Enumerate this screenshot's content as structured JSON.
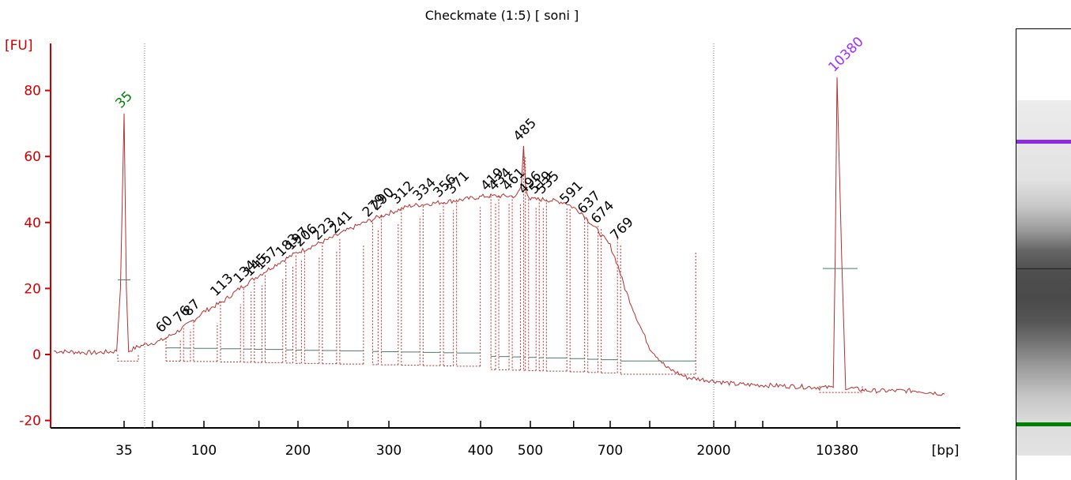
{
  "title": "Checkmate (1:5)  [ soni ]",
  "colors": {
    "axis": "#cc0000",
    "trace": "#b03030",
    "baseline": "#4a7a6a",
    "lower_marker": "#008000",
    "upper_marker": "#9b30ff",
    "peak_label": "#000000"
  },
  "chart_data": {
    "type": "line",
    "title": "Checkmate (1:5)  [ soni ]",
    "ylabel": "[FU]",
    "xlabel": "[bp]",
    "ylim": [
      -22,
      95
    ],
    "yticks": [
      -20,
      0,
      20,
      40,
      60,
      80
    ],
    "xtick_labels": [
      "35",
      "100",
      "200",
      "300",
      "400",
      "500",
      "700",
      "2000",
      "10380"
    ],
    "x_axis_scale": "ladder (non-linear bp)",
    "grid": false,
    "vertical_dotted_lines_bp": [
      45,
      2000
    ],
    "series": [
      {
        "x": [
          20,
          28,
          33,
          34,
          35,
          36,
          37,
          40,
          45,
          55,
          60,
          70,
          80,
          90,
          100,
          115,
          130,
          150,
          175,
          200,
          230,
          260,
          290,
          320,
          350,
          380,
          410,
          440,
          470,
          480,
          485,
          490,
          500,
          530,
          580,
          620,
          660,
          700,
          750,
          800,
          900,
          1000,
          1200,
          1500,
          2000,
          3000,
          6000,
          9000,
          10000,
          10200,
          10380,
          10600,
          10800,
          12000,
          15000,
          17000
        ],
        "values": [
          1,
          0.5,
          1,
          20,
          73,
          20,
          1,
          2,
          3,
          4,
          5,
          7,
          9,
          11,
          13,
          16,
          20,
          24,
          28,
          31,
          35,
          39,
          42,
          45,
          46,
          47,
          48,
          48,
          48,
          51,
          63,
          50,
          47,
          47,
          46,
          43,
          38,
          33,
          27,
          20,
          10,
          2,
          -4,
          -7,
          -8,
          -9,
          -9.5,
          -10,
          -10,
          30,
          84,
          30,
          -10,
          -11,
          -11,
          -12
        ]
      }
    ],
    "marker_peaks": [
      {
        "label": "35",
        "x": 35,
        "y": 73,
        "kind": "lower marker"
      },
      {
        "label": "10380",
        "x": 10380,
        "y": 84,
        "kind": "upper marker"
      }
    ],
    "peak_labels": [
      {
        "label": "60",
        "x": 60,
        "y": 5
      },
      {
        "label": "76",
        "x": 76,
        "y": 8
      },
      {
        "label": "87",
        "x": 87,
        "y": 10
      },
      {
        "label": "113",
        "x": 113,
        "y": 16
      },
      {
        "label": "134",
        "x": 134,
        "y": 20
      },
      {
        "label": "145",
        "x": 145,
        "y": 22
      },
      {
        "label": "157",
        "x": 157,
        "y": 24
      },
      {
        "label": "183",
        "x": 183,
        "y": 28
      },
      {
        "label": "197",
        "x": 197,
        "y": 30
      },
      {
        "label": "206",
        "x": 206,
        "y": 31
      },
      {
        "label": "223",
        "x": 223,
        "y": 33
      },
      {
        "label": "241",
        "x": 241,
        "y": 35
      },
      {
        "label": "279",
        "x": 279,
        "y": 40
      },
      {
        "label": "290",
        "x": 290,
        "y": 42
      },
      {
        "label": "312",
        "x": 312,
        "y": 44
      },
      {
        "label": "334",
        "x": 334,
        "y": 45
      },
      {
        "label": "356",
        "x": 356,
        "y": 46
      },
      {
        "label": "371",
        "x": 371,
        "y": 47
      },
      {
        "label": "419",
        "x": 419,
        "y": 48
      },
      {
        "label": "434",
        "x": 434,
        "y": 48
      },
      {
        "label": "461",
        "x": 461,
        "y": 48
      },
      {
        "label": "485",
        "x": 485,
        "y": 63
      },
      {
        "label": "496",
        "x": 496,
        "y": 47
      },
      {
        "label": "519",
        "x": 519,
        "y": 47
      },
      {
        "label": "535",
        "x": 535,
        "y": 47
      },
      {
        "label": "591",
        "x": 591,
        "y": 44
      },
      {
        "label": "637",
        "x": 637,
        "y": 41
      },
      {
        "label": "674",
        "x": 674,
        "y": 38
      },
      {
        "label": "769",
        "x": 769,
        "y": 33
      }
    ]
  },
  "gel": {
    "bands": [
      "upper-marker-band",
      "lower-marker-band"
    ]
  }
}
